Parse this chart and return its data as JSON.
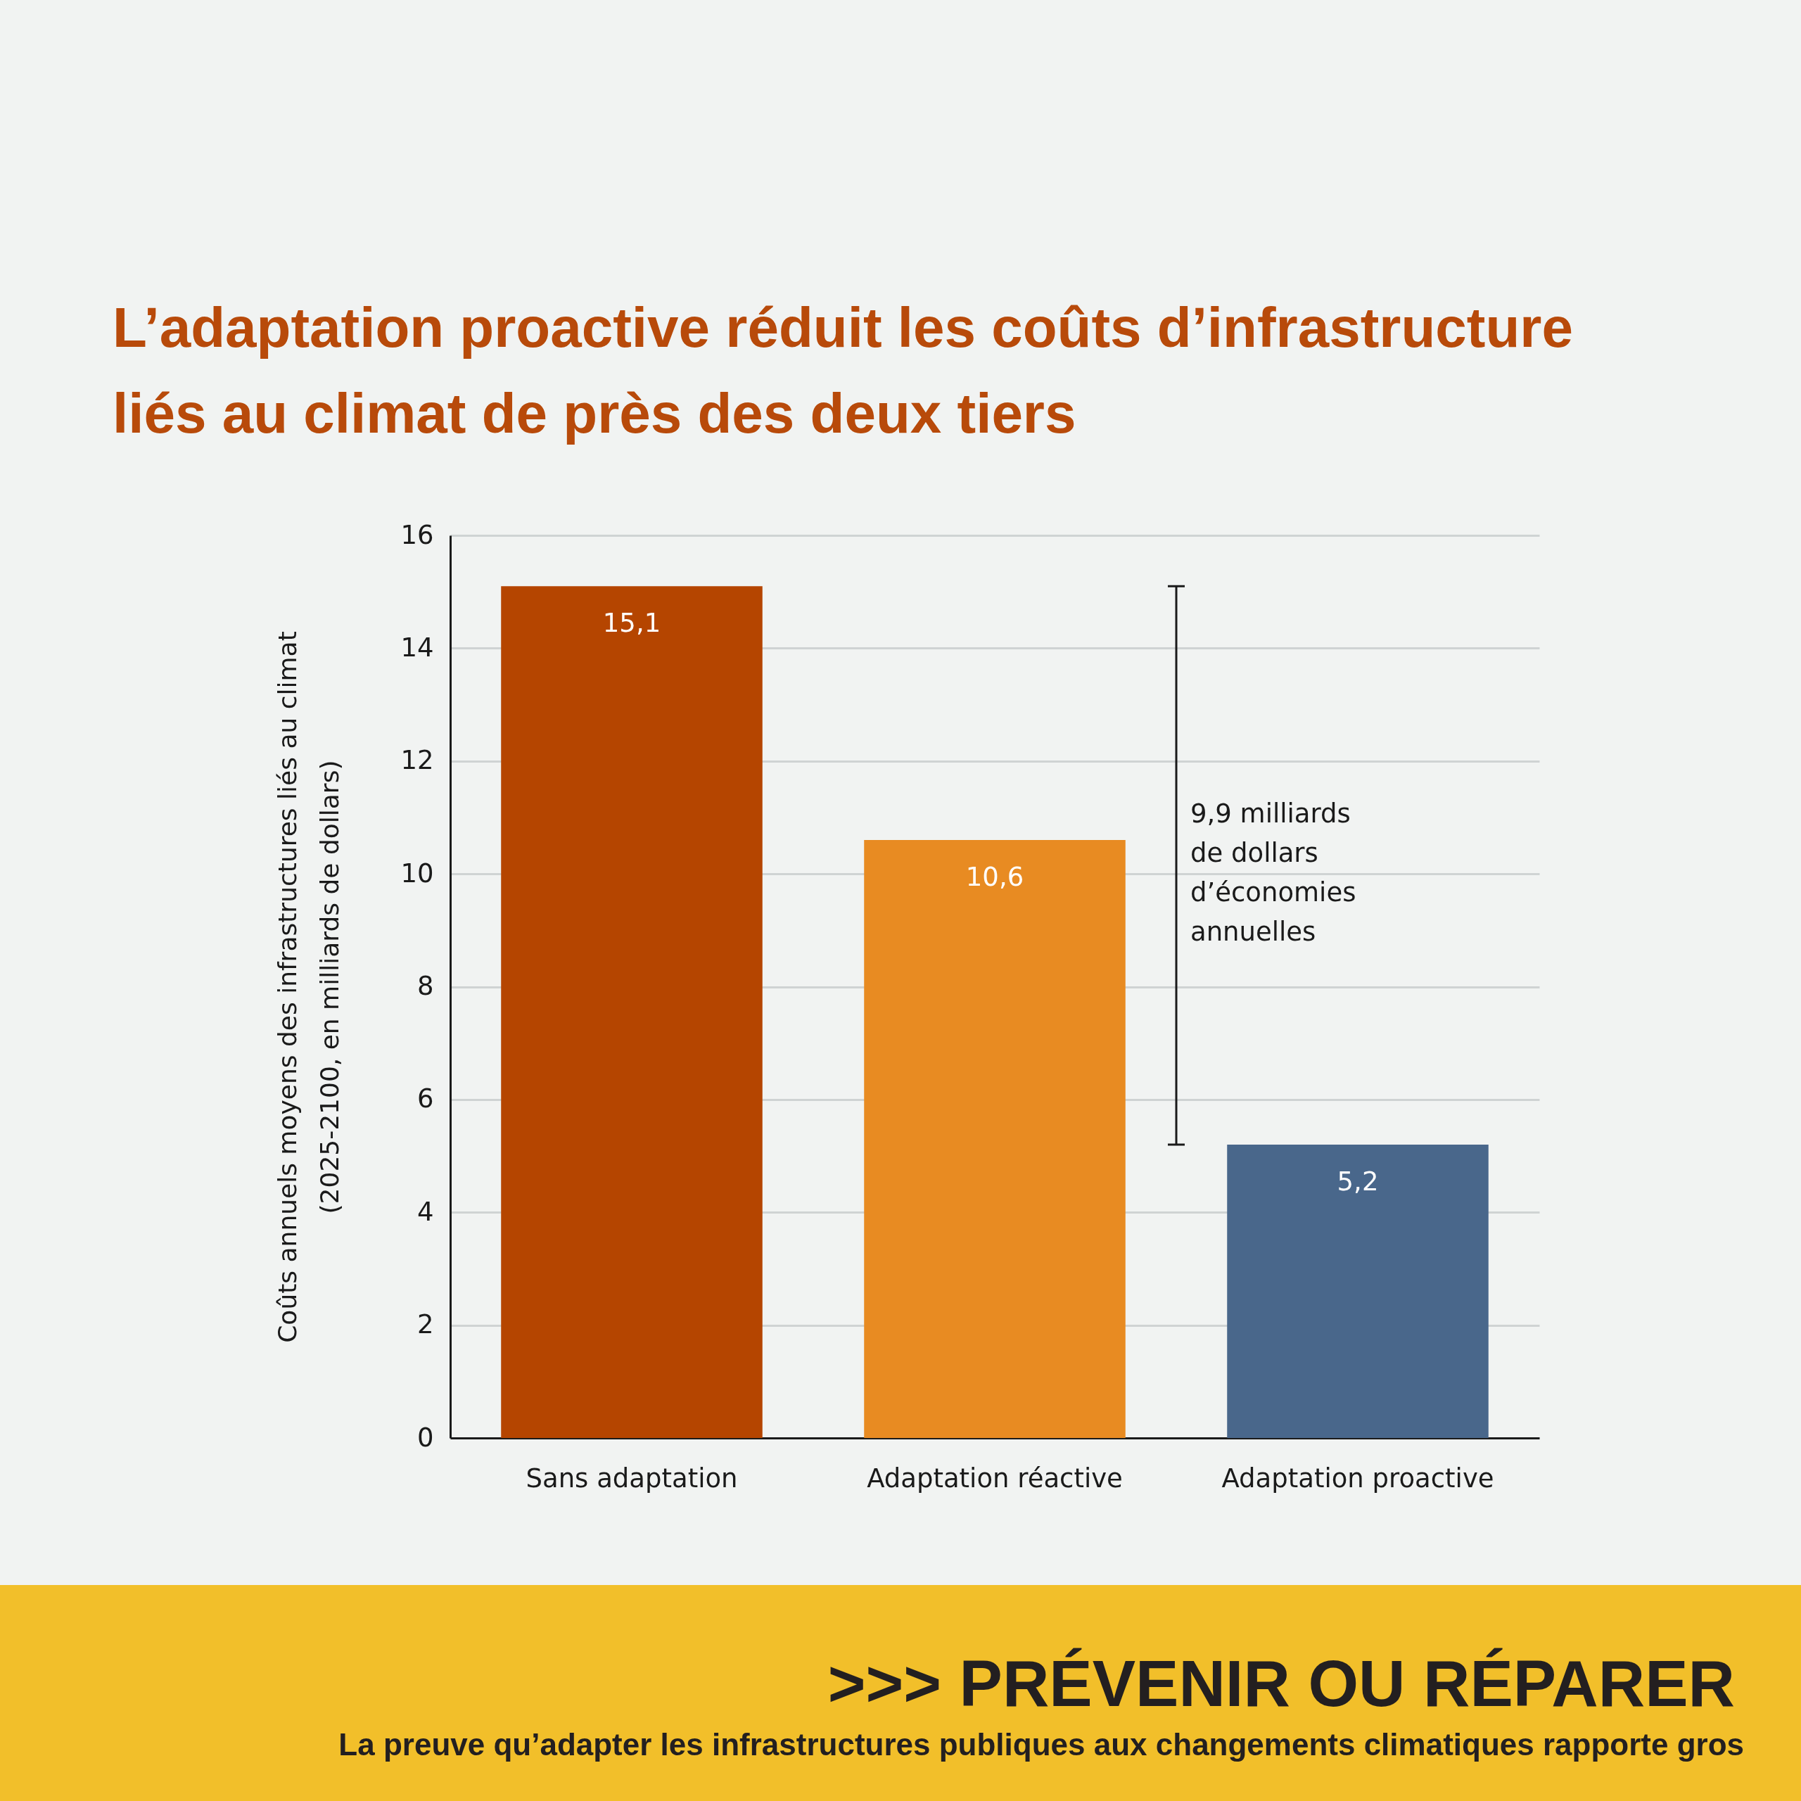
{
  "chart_data": {
    "type": "bar",
    "title": "L’adaptation proactive réduit les coûts d’infrastructure liés au climat de près des deux tiers",
    "ylabel": "Coûts annuels moyens des infrastructures liés au climat (2025-2100, en milliards de dollars)",
    "categories": [
      "Sans adaptation",
      "Adaptation réactive",
      "Adaptation proactive"
    ],
    "values": [
      15.1,
      10.6,
      5.2
    ],
    "colors": [
      "#b54500",
      "#e88b22",
      "#49678b"
    ],
    "value_labels": [
      "15,1",
      "10,6",
      "5,2"
    ],
    "ylim": [
      0,
      16
    ],
    "yticks": [
      0,
      2,
      4,
      6,
      8,
      10,
      12,
      14,
      16
    ],
    "grid": "y",
    "annotations": [
      "9,9 milliards de dollars d’économies annuelles",
      ">>> PRÉVENIR OU RÉPARER",
      "La preuve qu’adapter les infrastructures publiques aux changements climatiques rapporte gros"
    ]
  }
}
